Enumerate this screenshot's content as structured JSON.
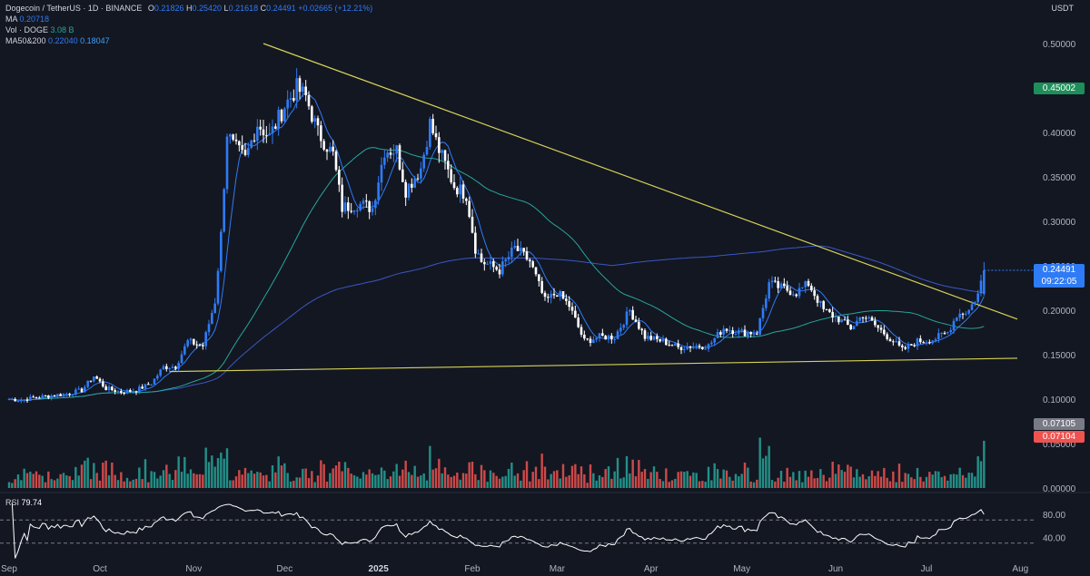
{
  "header": {
    "symbol": "Dogecoin / TetherUS · 1D · BINANCE",
    "o_label": "O",
    "o_value": "0.21826",
    "h_label": "H",
    "h_value": "0.25420",
    "l_label": "L",
    "l_value": "0.21618",
    "c_label": "C",
    "c_value": "0.24491",
    "change": "+0.02665 (+12.21%)",
    "ma_label": "MA",
    "ma_value": "0.20718",
    "vol_label": "Vol · DOGE",
    "vol_value": "3.08 B",
    "ma50_200_label": "MA50&200",
    "ma50_value": "0.22040",
    "ma200_value": "0.18047",
    "currency": "USDT"
  },
  "rsi_legend": {
    "label": "RSI",
    "value": "79.74"
  },
  "badges": {
    "alert": "0.45002",
    "price": "0.24491",
    "countdown": "09:22:05",
    "vol_ma": "0.07105",
    "vol_red": "0.07104"
  },
  "colors": {
    "background": "#131722",
    "up": "#2f7bf5",
    "up_light": "#ffffff",
    "down": "#ffffff",
    "vol_up": "#26a69a",
    "vol_down": "#ef5350",
    "ma_short": "#2f7bf5",
    "ma50": "#26a69a",
    "ma200": "#3b57c4",
    "trendline": "#d6d256",
    "rsi_line": "#ffffff",
    "alert_badge": "#1e8e5a"
  },
  "chart_data": {
    "type": "candlestick",
    "price_axis": {
      "min": 0.0,
      "max": 0.5,
      "ticks": [
        "0.50000",
        "0.45000",
        "0.40000",
        "0.35000",
        "0.30000",
        "0.25000",
        "0.20000",
        "0.15000",
        "0.10000",
        "0.05000",
        "0.00000"
      ]
    },
    "rsi_axis": {
      "ticks": [
        "80.00",
        "40.00"
      ],
      "levels": [
        70,
        30
      ]
    },
    "x_labels": [
      "Sep",
      "Oct",
      "Nov",
      "Dec",
      "2025",
      "Feb",
      "Mar",
      "Apr",
      "May",
      "Jun",
      "Jul",
      "Aug"
    ],
    "close_path": [
      [
        "2024-09-01",
        0.1
      ],
      [
        "2024-09-05",
        0.099
      ],
      [
        "2024-09-10",
        0.102
      ],
      [
        "2024-09-15",
        0.104
      ],
      [
        "2024-09-20",
        0.106
      ],
      [
        "2024-09-25",
        0.11
      ],
      [
        "2024-09-29",
        0.126
      ],
      [
        "2024-10-03",
        0.112
      ],
      [
        "2024-10-08",
        0.108
      ],
      [
        "2024-10-13",
        0.11
      ],
      [
        "2024-10-18",
        0.118
      ],
      [
        "2024-10-22",
        0.136
      ],
      [
        "2024-10-26",
        0.137
      ],
      [
        "2024-10-30",
        0.165
      ],
      [
        "2024-11-04",
        0.16
      ],
      [
        "2024-11-08",
        0.21
      ],
      [
        "2024-11-10",
        0.285
      ],
      [
        "2024-11-12",
        0.4
      ],
      [
        "2024-11-14",
        0.385
      ],
      [
        "2024-11-18",
        0.37
      ],
      [
        "2024-11-22",
        0.41
      ],
      [
        "2024-11-26",
        0.395
      ],
      [
        "2024-12-01",
        0.43
      ],
      [
        "2024-12-05",
        0.45
      ],
      [
        "2024-12-08",
        0.44
      ],
      [
        "2024-12-12",
        0.4
      ],
      [
        "2024-12-17",
        0.375
      ],
      [
        "2024-12-20",
        0.315
      ],
      [
        "2024-12-25",
        0.32
      ],
      [
        "2024-12-30",
        0.315
      ],
      [
        "2025-01-03",
        0.38
      ],
      [
        "2025-01-07",
        0.38
      ],
      [
        "2025-01-10",
        0.335
      ],
      [
        "2025-01-15",
        0.36
      ],
      [
        "2025-01-18",
        0.41
      ],
      [
        "2025-01-21",
        0.38
      ],
      [
        "2025-01-26",
        0.34
      ],
      [
        "2025-01-30",
        0.33
      ],
      [
        "2025-02-02",
        0.27
      ],
      [
        "2025-02-04",
        0.255
      ],
      [
        "2025-02-10",
        0.245
      ],
      [
        "2025-02-15",
        0.27
      ],
      [
        "2025-02-20",
        0.255
      ],
      [
        "2025-02-25",
        0.21
      ],
      [
        "2025-03-01",
        0.22
      ],
      [
        "2025-03-05",
        0.205
      ],
      [
        "2025-03-10",
        0.165
      ],
      [
        "2025-03-15",
        0.17
      ],
      [
        "2025-03-20",
        0.17
      ],
      [
        "2025-03-25",
        0.2
      ],
      [
        "2025-03-30",
        0.17
      ],
      [
        "2025-04-05",
        0.165
      ],
      [
        "2025-04-10",
        0.158
      ],
      [
        "2025-04-15",
        0.16
      ],
      [
        "2025-04-20",
        0.16
      ],
      [
        "2025-04-25",
        0.18
      ],
      [
        "2025-05-01",
        0.175
      ],
      [
        "2025-05-06",
        0.175
      ],
      [
        "2025-05-10",
        0.23
      ],
      [
        "2025-05-14",
        0.225
      ],
      [
        "2025-05-19",
        0.22
      ],
      [
        "2025-05-23",
        0.23
      ],
      [
        "2025-05-28",
        0.2
      ],
      [
        "2025-06-02",
        0.19
      ],
      [
        "2025-06-06",
        0.18
      ],
      [
        "2025-06-10",
        0.195
      ],
      [
        "2025-06-15",
        0.18
      ],
      [
        "2025-06-20",
        0.165
      ],
      [
        "2025-06-23",
        0.155
      ],
      [
        "2025-06-28",
        0.165
      ],
      [
        "2025-07-03",
        0.167
      ],
      [
        "2025-07-08",
        0.175
      ],
      [
        "2025-07-11",
        0.195
      ],
      [
        "2025-07-15",
        0.2
      ],
      [
        "2025-07-18",
        0.218
      ],
      [
        "2025-07-20",
        0.2449
      ]
    ],
    "trendlines": [
      {
        "from": [
          "2024-11-24",
          0.5
        ],
        "to": [
          "2025-07-31",
          0.19
        ]
      },
      {
        "from": [
          "2024-10-24",
          0.131
        ],
        "to": [
          "2025-07-31",
          0.146
        ]
      }
    ],
    "last_values": {
      "open": 0.21826,
      "high": 0.2542,
      "low": 0.21618,
      "close": 0.24491,
      "rsi": 79.74,
      "ma": 0.20718,
      "ma50": 0.2204,
      "ma200": 0.18047,
      "volume_B": 3.08
    }
  }
}
